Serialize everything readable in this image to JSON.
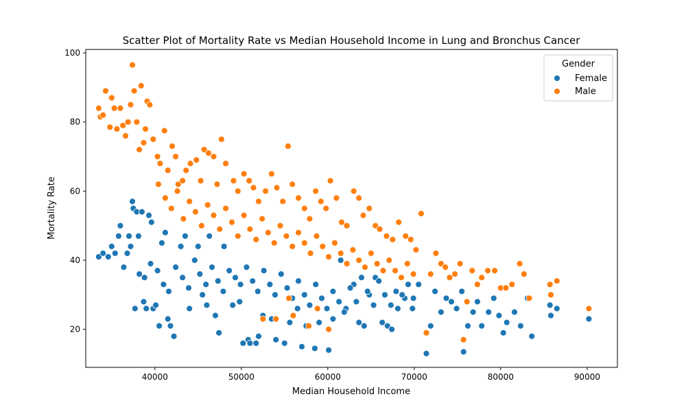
{
  "chart_data": {
    "type": "scatter",
    "title": "Scatter Plot of Mortality Rate vs Median Household Income in Lung and Bronchus Cancer",
    "xlabel": "Median Household Income",
    "ylabel": "Mortality Rate",
    "xlim": [
      32000,
      93500
    ],
    "ylim": [
      9,
      101
    ],
    "xticks": [
      40000,
      50000,
      60000,
      70000,
      80000,
      90000
    ],
    "xtick_labels": [
      "40000",
      "50000",
      "60000",
      "70000",
      "80000",
      "90000"
    ],
    "yticks": [
      20,
      40,
      60,
      80,
      100
    ],
    "ytick_labels": [
      "20",
      "40",
      "60",
      "80",
      "100"
    ],
    "grid": false,
    "legend": {
      "title": "Gender",
      "placement": "top-right",
      "entries": [
        "Female",
        "Male"
      ]
    },
    "colors": {
      "Female": "#1f77b4",
      "Male": "#ff7f0e"
    },
    "series": [
      {
        "name": "Female",
        "color": "#1f77b4",
        "points": [
          [
            33500,
            41
          ],
          [
            34000,
            42
          ],
          [
            34600,
            41
          ],
          [
            35000,
            44
          ],
          [
            35400,
            42
          ],
          [
            35800,
            47
          ],
          [
            36000,
            50
          ],
          [
            36400,
            38
          ],
          [
            36800,
            42
          ],
          [
            37000,
            47
          ],
          [
            37200,
            44
          ],
          [
            37400,
            57
          ],
          [
            37500,
            55
          ],
          [
            37700,
            26
          ],
          [
            37900,
            54
          ],
          [
            38100,
            47
          ],
          [
            38500,
            54
          ],
          [
            38700,
            28
          ],
          [
            39000,
            26
          ],
          [
            39300,
            53
          ],
          [
            39600,
            51
          ],
          [
            39800,
            26
          ],
          [
            40100,
            27
          ],
          [
            40500,
            21
          ],
          [
            40800,
            45
          ],
          [
            41200,
            48
          ],
          [
            41500,
            23
          ],
          [
            41800,
            21
          ],
          [
            42200,
            18
          ],
          [
            43000,
            44
          ],
          [
            43500,
            47
          ],
          [
            44000,
            26
          ],
          [
            45000,
            44
          ],
          [
            45500,
            30
          ],
          [
            46000,
            27
          ],
          [
            46300,
            47
          ],
          [
            47000,
            24
          ],
          [
            47400,
            19
          ],
          [
            48000,
            44
          ],
          [
            49000,
            27
          ],
          [
            49800,
            28
          ],
          [
            50200,
            16
          ],
          [
            50800,
            17
          ],
          [
            51000,
            16
          ],
          [
            51700,
            16
          ],
          [
            52000,
            18
          ],
          [
            52500,
            24
          ],
          [
            53500,
            23
          ],
          [
            54000,
            17
          ],
          [
            55000,
            16
          ],
          [
            55600,
            22
          ],
          [
            56500,
            26
          ],
          [
            57000,
            15
          ],
          [
            57500,
            21
          ],
          [
            58500,
            14.5
          ],
          [
            59000,
            22
          ],
          [
            60100,
            14
          ],
          [
            60600,
            23
          ],
          [
            61500,
            40
          ],
          [
            62100,
            26
          ],
          [
            63000,
            33
          ],
          [
            63600,
            22
          ],
          [
            64200,
            21
          ],
          [
            64800,
            30
          ],
          [
            65500,
            35
          ],
          [
            66300,
            22
          ],
          [
            66900,
            21
          ],
          [
            67400,
            20
          ],
          [
            68100,
            26
          ],
          [
            68900,
            29
          ],
          [
            69800,
            26
          ],
          [
            70500,
            33
          ],
          [
            71400,
            13
          ],
          [
            71900,
            21
          ],
          [
            72400,
            31
          ],
          [
            73100,
            25
          ],
          [
            73700,
            29
          ],
          [
            74300,
            28
          ],
          [
            74900,
            26
          ],
          [
            75500,
            31
          ],
          [
            75700,
            13.5
          ],
          [
            76200,
            21
          ],
          [
            76800,
            25
          ],
          [
            77300,
            28
          ],
          [
            77800,
            21
          ],
          [
            78600,
            25
          ],
          [
            79200,
            29
          ],
          [
            79800,
            24
          ],
          [
            80300,
            19
          ],
          [
            80700,
            22
          ],
          [
            81600,
            25
          ],
          [
            82300,
            21
          ],
          [
            83100,
            29
          ],
          [
            83600,
            18
          ],
          [
            85700,
            27
          ],
          [
            85800,
            24
          ],
          [
            86500,
            26
          ],
          [
            90200,
            23
          ],
          [
            38200,
            36
          ],
          [
            38800,
            35
          ],
          [
            39500,
            39
          ],
          [
            40300,
            37
          ],
          [
            41000,
            33
          ],
          [
            41600,
            31
          ],
          [
            42400,
            38
          ],
          [
            43200,
            35
          ],
          [
            43900,
            32
          ],
          [
            44600,
            40
          ],
          [
            45200,
            36
          ],
          [
            45900,
            33
          ],
          [
            46600,
            38
          ],
          [
            47300,
            34
          ],
          [
            47900,
            31
          ],
          [
            48600,
            37
          ],
          [
            49300,
            35
          ],
          [
            49900,
            33
          ],
          [
            50600,
            38
          ],
          [
            51300,
            34
          ],
          [
            51900,
            31
          ],
          [
            52600,
            37
          ],
          [
            53300,
            33
          ],
          [
            53900,
            30
          ],
          [
            54600,
            36
          ],
          [
            55300,
            32
          ],
          [
            55900,
            29
          ],
          [
            56600,
            34
          ],
          [
            57300,
            30
          ],
          [
            57900,
            27
          ],
          [
            58600,
            33
          ],
          [
            59300,
            29
          ],
          [
            59900,
            26
          ],
          [
            60600,
            31
          ],
          [
            61300,
            28
          ],
          [
            61900,
            25
          ],
          [
            62600,
            32
          ],
          [
            63300,
            28
          ],
          [
            63900,
            35
          ],
          [
            64600,
            31
          ],
          [
            65300,
            27
          ],
          [
            65900,
            34
          ],
          [
            66600,
            30
          ],
          [
            67300,
            27
          ],
          [
            67900,
            31
          ],
          [
            68600,
            30
          ],
          [
            69300,
            33
          ],
          [
            69900,
            29
          ]
        ]
      },
      {
        "name": "Male",
        "color": "#ff7f0e",
        "points": [
          [
            33500,
            84
          ],
          [
            33700,
            81.5
          ],
          [
            34000,
            82
          ],
          [
            34300,
            89
          ],
          [
            34800,
            78.5
          ],
          [
            35000,
            87
          ],
          [
            35300,
            84
          ],
          [
            35600,
            78
          ],
          [
            36000,
            84
          ],
          [
            36300,
            79
          ],
          [
            36600,
            76
          ],
          [
            36900,
            80
          ],
          [
            37200,
            85
          ],
          [
            37400,
            96.5
          ],
          [
            37600,
            89
          ],
          [
            37900,
            80
          ],
          [
            38200,
            72
          ],
          [
            38400,
            90.5
          ],
          [
            38700,
            74
          ],
          [
            38900,
            78
          ],
          [
            39100,
            86
          ],
          [
            39400,
            85
          ],
          [
            39800,
            75
          ],
          [
            40300,
            70
          ],
          [
            40600,
            68
          ],
          [
            41100,
            77.5
          ],
          [
            41500,
            66
          ],
          [
            42000,
            73
          ],
          [
            42400,
            70
          ],
          [
            42700,
            62
          ],
          [
            43200,
            63
          ],
          [
            43600,
            66
          ],
          [
            44100,
            68
          ],
          [
            44800,
            69
          ],
          [
            45300,
            63
          ],
          [
            45700,
            72
          ],
          [
            46200,
            71
          ],
          [
            46800,
            70
          ],
          [
            47200,
            62
          ],
          [
            47700,
            75
          ],
          [
            48200,
            68
          ],
          [
            49100,
            63
          ],
          [
            49600,
            60
          ],
          [
            50300,
            65
          ],
          [
            50900,
            63
          ],
          [
            51400,
            61
          ],
          [
            52000,
            57
          ],
          [
            52800,
            60
          ],
          [
            53500,
            65
          ],
          [
            54100,
            61
          ],
          [
            54800,
            57
          ],
          [
            55400,
            73
          ],
          [
            55900,
            62
          ],
          [
            56600,
            58
          ],
          [
            57300,
            55
          ],
          [
            57900,
            52
          ],
          [
            58600,
            60
          ],
          [
            59200,
            57
          ],
          [
            59800,
            55
          ],
          [
            60300,
            63
          ],
          [
            61000,
            58
          ],
          [
            61600,
            51
          ],
          [
            62200,
            50
          ],
          [
            63000,
            60
          ],
          [
            63600,
            58
          ],
          [
            64100,
            53
          ],
          [
            64800,
            55
          ],
          [
            65500,
            50
          ],
          [
            66000,
            49
          ],
          [
            66800,
            47
          ],
          [
            67500,
            46
          ],
          [
            68200,
            51
          ],
          [
            69000,
            47
          ],
          [
            69600,
            46
          ],
          [
            70200,
            43
          ],
          [
            70800,
            53.5
          ],
          [
            71400,
            19
          ],
          [
            71900,
            36
          ],
          [
            72500,
            42
          ],
          [
            73100,
            39
          ],
          [
            73600,
            38
          ],
          [
            74100,
            35
          ],
          [
            74700,
            36
          ],
          [
            75300,
            39
          ],
          [
            75700,
            17
          ],
          [
            76100,
            28
          ],
          [
            76700,
            37
          ],
          [
            77300,
            33
          ],
          [
            77800,
            35
          ],
          [
            78500,
            37
          ],
          [
            79300,
            37
          ],
          [
            80000,
            32
          ],
          [
            80600,
            32
          ],
          [
            81300,
            33
          ],
          [
            82200,
            39
          ],
          [
            82700,
            36
          ],
          [
            83300,
            29
          ],
          [
            85700,
            33
          ],
          [
            85800,
            30
          ],
          [
            86500,
            34
          ],
          [
            90200,
            26
          ],
          [
            40400,
            62
          ],
          [
            41200,
            58
          ],
          [
            41900,
            55
          ],
          [
            42600,
            60
          ],
          [
            43300,
            52
          ],
          [
            44000,
            57
          ],
          [
            44700,
            54
          ],
          [
            45400,
            50
          ],
          [
            46100,
            56
          ],
          [
            46800,
            53
          ],
          [
            47500,
            49
          ],
          [
            48200,
            55
          ],
          [
            48900,
            51
          ],
          [
            49600,
            47
          ],
          [
            50300,
            53
          ],
          [
            51000,
            49
          ],
          [
            51700,
            46
          ],
          [
            52400,
            52
          ],
          [
            53100,
            48
          ],
          [
            53800,
            45
          ],
          [
            54500,
            50
          ],
          [
            55200,
            47
          ],
          [
            55900,
            44
          ],
          [
            56600,
            48
          ],
          [
            57300,
            45
          ],
          [
            58000,
            42
          ],
          [
            58700,
            47
          ],
          [
            59400,
            44
          ],
          [
            60100,
            41
          ],
          [
            60800,
            45
          ],
          [
            61500,
            42
          ],
          [
            62200,
            39
          ],
          [
            62900,
            43
          ],
          [
            63600,
            40
          ],
          [
            64300,
            38
          ],
          [
            65000,
            42
          ],
          [
            65700,
            39
          ],
          [
            66400,
            37
          ],
          [
            67100,
            40
          ],
          [
            67800,
            37
          ],
          [
            68500,
            35
          ],
          [
            69200,
            39
          ],
          [
            69900,
            36
          ],
          [
            52500,
            23
          ],
          [
            54000,
            23
          ],
          [
            56000,
            24
          ],
          [
            57800,
            21
          ],
          [
            60100,
            20
          ],
          [
            58800,
            26
          ],
          [
            55500,
            29
          ]
        ]
      }
    ]
  }
}
